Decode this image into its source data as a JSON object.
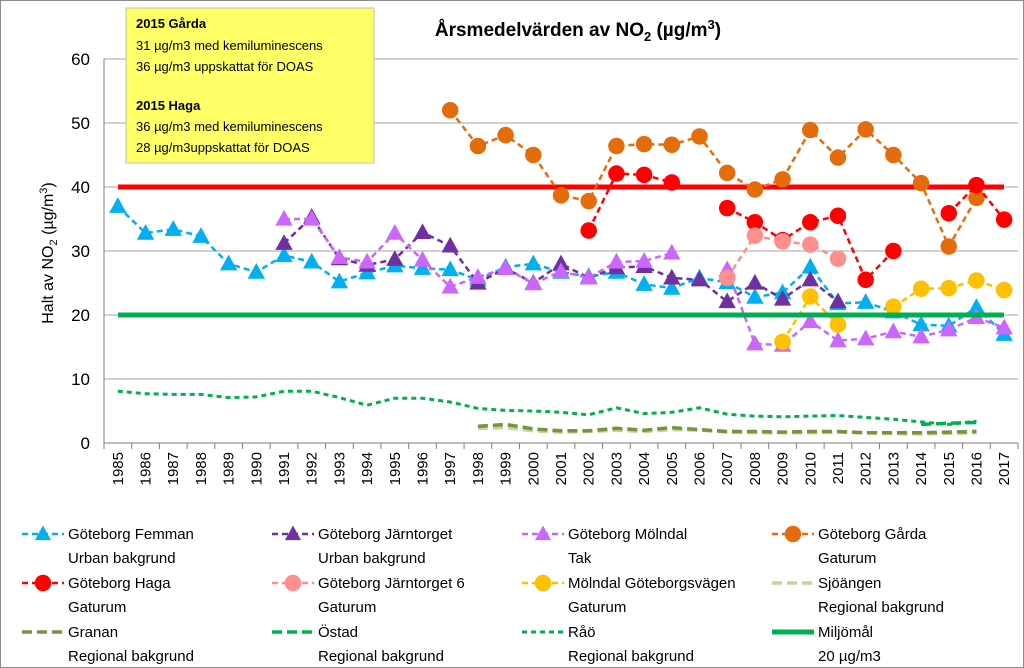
{
  "chart_data": {
    "type": "line",
    "title_main": "Årsmedelvärden av NO",
    "title_sub": "2",
    "title_unit": " (µg/m",
    "title_sup": "3",
    "title_end": ")",
    "ylabel_a": "Halt av NO",
    "ylabel_sub": "2",
    "ylabel_b": " (µg/m",
    "ylabel_sup": "3",
    "ylabel_c": ")",
    "ylim": [
      0,
      60
    ],
    "yticks": [
      "0",
      "10",
      "20",
      "30",
      "40",
      "50",
      "60"
    ],
    "categories": [
      "1985",
      "1986",
      "1987",
      "1988",
      "1989",
      "1990",
      "1991",
      "1992",
      "1993",
      "1994",
      "1995",
      "1996",
      "1997",
      "1998",
      "1999",
      "2000",
      "2001",
      "2002",
      "2003",
      "2004",
      "2005",
      "2006",
      "2007",
      "2008",
      "2009",
      "2010",
      "2011",
      "2012",
      "2013",
      "2014",
      "2015",
      "2016",
      "2017"
    ],
    "grid": true,
    "legend_placement": "bottom",
    "annotation": {
      "heading1": "2015 Gårda",
      "line1": "31 µg/m3 med kemiluminescens",
      "line2": "36 µg/m3 uppskattat för DOAS",
      "heading2": "2015 Haga",
      "line3": "36 µg/m3 med kemiluminescens",
      "line4": "28 µg/m3uppskattat för DOAS",
      "background": "#ffff66"
    },
    "series": [
      {
        "name": "Göteborg Femman",
        "subtitle": "Urban bakgrund",
        "color": "#00b0f0",
        "marker": "triangle",
        "dash": "dash",
        "values": [
          37,
          32.8,
          33.4,
          32.3,
          28,
          26.7,
          29.3,
          28.3,
          25.2,
          26.6,
          27.7,
          27.3,
          27.1,
          25.5,
          27.5,
          28,
          26.7,
          26,
          26.7,
          24.8,
          24.2,
          25.8,
          25.1,
          22.8,
          23.5,
          27.5,
          21.8,
          22,
          20.5,
          18.5,
          18.3,
          21.2,
          17
        ]
      },
      {
        "name": "Göteborg Järntorget",
        "subtitle": "Urban bakgrund",
        "color": "#7030a0",
        "marker": "triangle",
        "dash": "dash",
        "values": [
          null,
          null,
          null,
          null,
          null,
          null,
          31.2,
          35.3,
          28.8,
          27.8,
          28.7,
          32.9,
          30.8,
          25,
          27.3,
          25,
          28,
          25.8,
          27.4,
          27.6,
          25.8,
          25.5,
          22.1,
          25,
          22.5,
          25.5,
          22.1,
          null,
          null,
          null,
          null,
          null,
          null
        ]
      },
      {
        "name": "Göteborg Mölndal",
        "subtitle": "Tak",
        "color": "#cc66ff",
        "marker": "triangle",
        "dash": "dash",
        "values": [
          null,
          null,
          null,
          null,
          null,
          null,
          35,
          35,
          29,
          28.3,
          32.8,
          28.6,
          24.4,
          25.9,
          27.3,
          24.9,
          26.8,
          25.8,
          28.3,
          28.4,
          29.7,
          null,
          27.1,
          15.5,
          15.3,
          19,
          16,
          16.3,
          17.4,
          16.6,
          17.7,
          19.6,
          18
        ]
      },
      {
        "name": "Göteborg Gårda",
        "subtitle": "Gaturum",
        "color": "#e46c0a",
        "marker": "circle",
        "dash": "dash",
        "values": [
          null,
          null,
          null,
          null,
          null,
          null,
          null,
          null,
          null,
          null,
          null,
          null,
          52,
          46.4,
          48.1,
          45,
          38.7,
          37.8,
          46.4,
          46.7,
          46.6,
          47.9,
          42.2,
          39.6,
          41.2,
          48.9,
          44.6,
          49,
          45,
          40.6,
          30.7,
          38.3,
          null
        ]
      },
      {
        "name": "Göteborg Haga",
        "subtitle": "Gaturum",
        "color": "#ff0000",
        "marker": "circle",
        "dash": "dash",
        "values": [
          null,
          null,
          null,
          null,
          null,
          null,
          null,
          null,
          null,
          null,
          null,
          null,
          null,
          null,
          null,
          null,
          null,
          33.2,
          42.1,
          41.9,
          40.7,
          null,
          36.7,
          34.5,
          31.7,
          34.5,
          35.5,
          25.5,
          30,
          null,
          35.9,
          40.3,
          34.9
        ]
      },
      {
        "name": "Göteborg Järntorget 6",
        "subtitle": "Gaturum",
        "color": "#ff8f8f",
        "marker": "circle",
        "dash": "dash",
        "values": [
          null,
          null,
          null,
          null,
          null,
          null,
          null,
          null,
          null,
          null,
          null,
          null,
          null,
          null,
          null,
          null,
          null,
          null,
          null,
          null,
          null,
          null,
          25.8,
          32.4,
          31.5,
          31,
          28.8,
          null,
          null,
          null,
          null,
          null,
          null
        ]
      },
      {
        "name": "Mölndal Göteborgsvägen",
        "subtitle": "Gaturum",
        "color": "#ffc000",
        "marker": "circle",
        "dash": "dash",
        "values": [
          null,
          null,
          null,
          null,
          null,
          null,
          null,
          null,
          null,
          null,
          null,
          null,
          null,
          null,
          null,
          null,
          null,
          null,
          null,
          null,
          null,
          null,
          null,
          null,
          15.8,
          22.9,
          18.5,
          null,
          21.3,
          24.1,
          24.2,
          25.4,
          23.9
        ]
      },
      {
        "name": "Sjöängen",
        "subtitle": "Regional bakgrund",
        "color": "#c4d79b",
        "marker": "none",
        "dash": "longdash",
        "values": [
          null,
          null,
          null,
          null,
          null,
          null,
          null,
          null,
          null,
          null,
          null,
          null,
          null,
          2.3,
          2.4,
          1.9,
          1.7,
          1.8,
          2,
          1.8,
          2.1,
          2,
          1.7,
          1.6,
          1.6,
          1.6,
          1.7,
          1.6,
          1.5,
          1.4,
          1.5,
          1.6,
          null
        ]
      },
      {
        "name": "Granan",
        "subtitle": "Regional bakgrund",
        "color": "#77933c",
        "marker": "none",
        "dash": "longdash",
        "values": [
          null,
          null,
          null,
          null,
          null,
          null,
          null,
          null,
          null,
          null,
          null,
          null,
          null,
          2.6,
          2.9,
          2.2,
          1.9,
          1.9,
          2.3,
          2,
          2.4,
          2.1,
          1.8,
          1.8,
          1.7,
          1.8,
          1.8,
          1.6,
          1.6,
          1.6,
          1.7,
          1.8,
          null
        ]
      },
      {
        "name": "Östad",
        "subtitle": "Regional bakgrund",
        "color": "#00b050",
        "marker": "none",
        "dash": "longdash",
        "values": [
          null,
          null,
          null,
          null,
          null,
          null,
          null,
          null,
          null,
          null,
          null,
          null,
          null,
          null,
          null,
          null,
          null,
          null,
          null,
          null,
          null,
          null,
          null,
          null,
          null,
          null,
          null,
          null,
          null,
          2.9,
          3.1,
          3.2,
          null
        ]
      },
      {
        "name": "Råö",
        "subtitle": "Regional bakgrund",
        "color": "#00b050",
        "marker": "none",
        "dash": "shortdash",
        "values": [
          8.1,
          7.7,
          7.6,
          7.6,
          7.1,
          7.2,
          8.1,
          8.1,
          7.1,
          5.9,
          7,
          7,
          6.4,
          5.4,
          5.1,
          5,
          4.8,
          4.4,
          5.5,
          4.6,
          4.8,
          5.5,
          4.5,
          4.2,
          4.1,
          4.2,
          4.3,
          4,
          3.7,
          3.3,
          2.9,
          3.4,
          null
        ]
      },
      {
        "name": "Miljömål",
        "subtitle": "20 µg/m3",
        "color": "#00b050",
        "marker": "none",
        "dash": "solid",
        "values": [
          20,
          20,
          20,
          20,
          20,
          20,
          20,
          20,
          20,
          20,
          20,
          20,
          20,
          20,
          20,
          20,
          20,
          20,
          20,
          20,
          20,
          20,
          20,
          20,
          20,
          20,
          20,
          20,
          20,
          20,
          20,
          20,
          20
        ]
      }
    ],
    "limit_line": {
      "value": 40,
      "color": "#ff0000"
    }
  }
}
